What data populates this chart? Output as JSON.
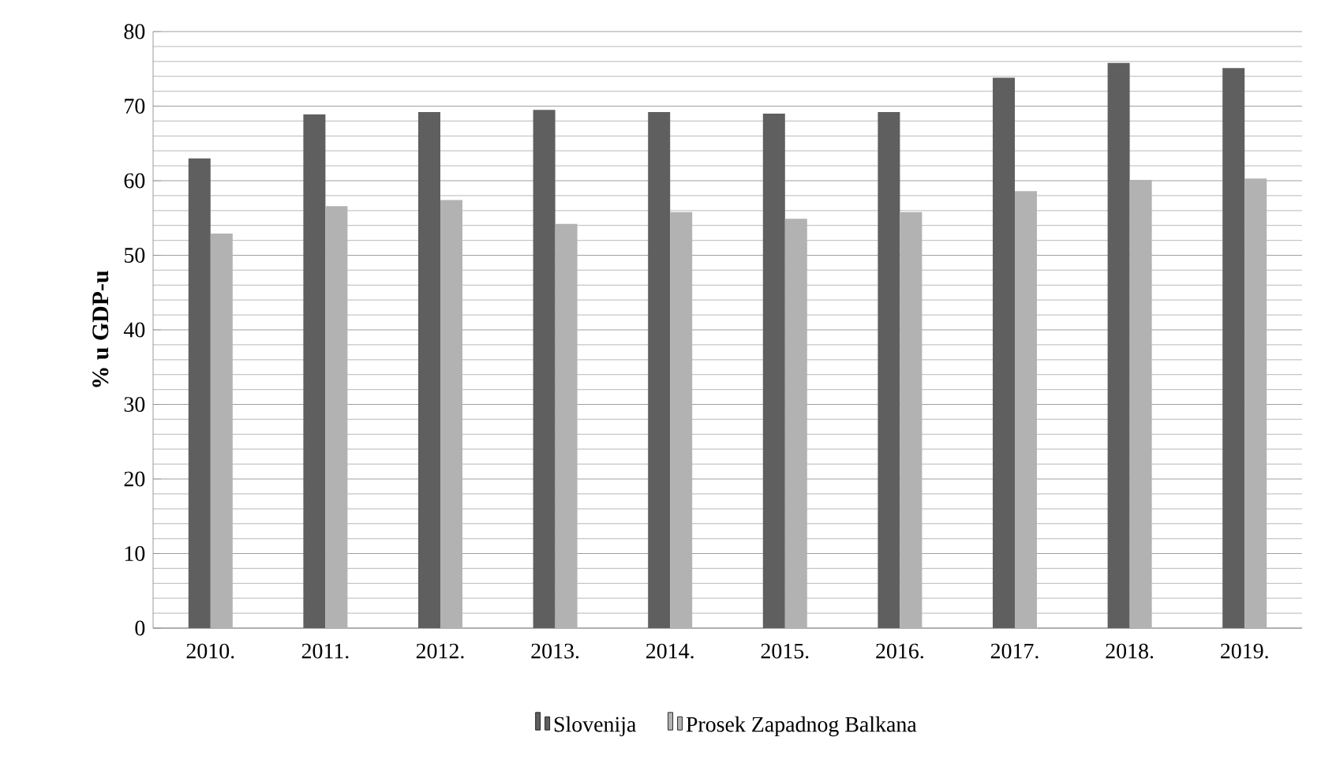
{
  "chart_data": {
    "type": "bar",
    "ylabel": "% u GDP-u",
    "categories": [
      "2010.",
      "2011.",
      "2012.",
      "2013.",
      "2014.",
      "2015.",
      "2016.",
      "2017.",
      "2018.",
      "2019."
    ],
    "series": [
      {
        "name": "Slovenija",
        "color": "#5f5f5f",
        "values": [
          63.0,
          68.9,
          69.2,
          69.5,
          69.2,
          69.0,
          69.2,
          73.8,
          75.8,
          75.1
        ]
      },
      {
        "name": "Prosek Zapadnog Balkana",
        "color": "#b2b2b2",
        "values": [
          52.9,
          56.6,
          57.4,
          54.2,
          55.8,
          54.9,
          55.8,
          58.6,
          60.1,
          60.3
        ]
      }
    ],
    "ylim": [
      0,
      80
    ],
    "yticks": [
      0,
      10,
      20,
      30,
      40,
      50,
      60,
      70,
      80
    ],
    "grid": "y",
    "legend": "bottom"
  }
}
